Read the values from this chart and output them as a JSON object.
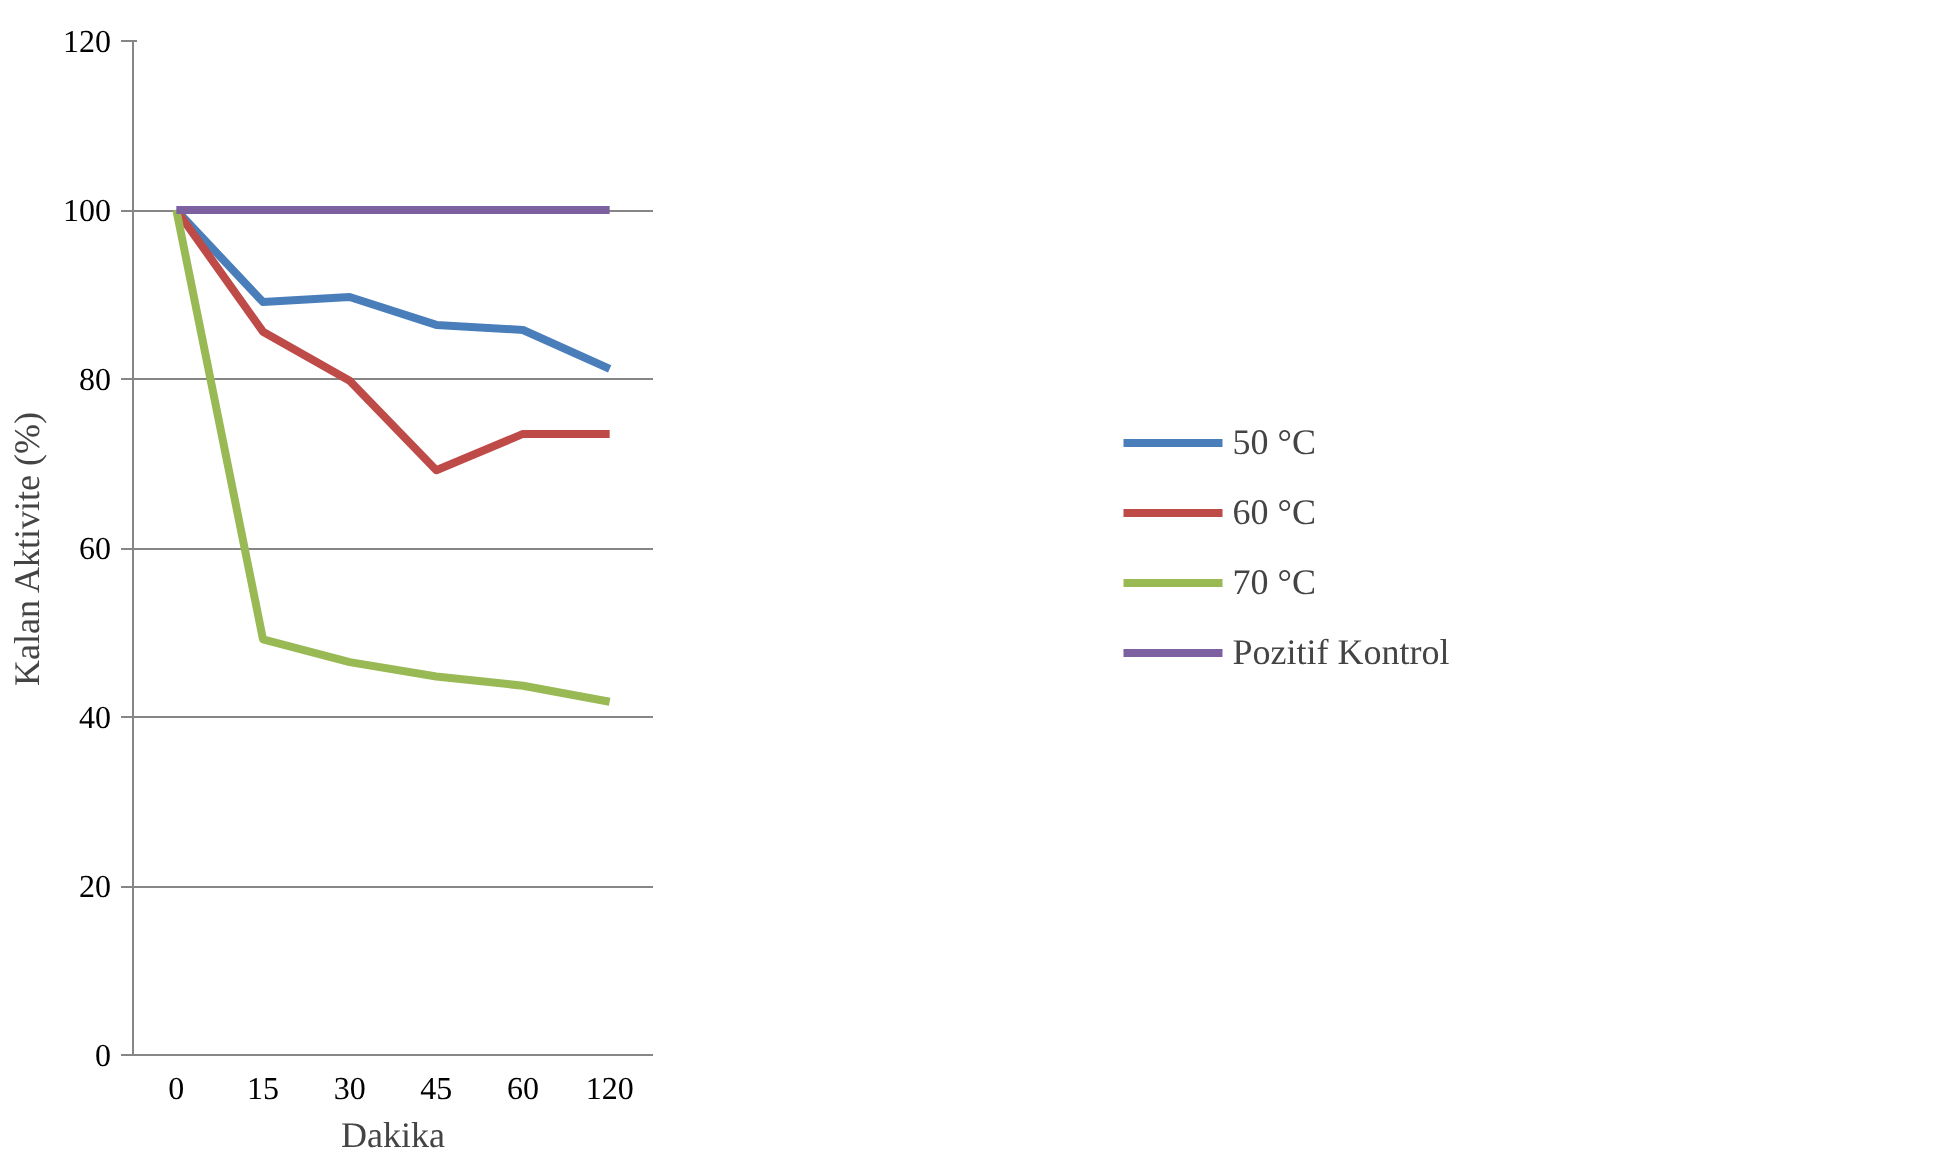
{
  "chart_data": {
    "type": "line",
    "xlabel": "Dakika",
    "ylabel": "Kalan Aktivite (%)",
    "categories": [
      "0",
      "15",
      "30",
      "45",
      "60",
      "120"
    ],
    "ylim": [
      0,
      120
    ],
    "yticks": [
      0,
      20,
      40,
      60,
      80,
      100,
      120
    ],
    "grid": "y",
    "legend": "right",
    "marker": "none",
    "line_style": "solid",
    "series": [
      {
        "name": "50 °C",
        "color": "#4a7ebb",
        "values": [
          100,
          89.1,
          89.7,
          86.4,
          85.8,
          81.2
        ]
      },
      {
        "name": "60 °C",
        "color": "#be4b48",
        "values": [
          100,
          85.6,
          79.8,
          69.2,
          73.5,
          73.5
        ]
      },
      {
        "name": "70 °C",
        "color": "#98b954",
        "values": [
          100,
          49.2,
          46.5,
          44.8,
          43.7,
          41.8
        ]
      },
      {
        "name": "Pozitif Kontrol",
        "color": "#7d60a0",
        "values": [
          100,
          100,
          100,
          100,
          100,
          100
        ]
      }
    ]
  }
}
